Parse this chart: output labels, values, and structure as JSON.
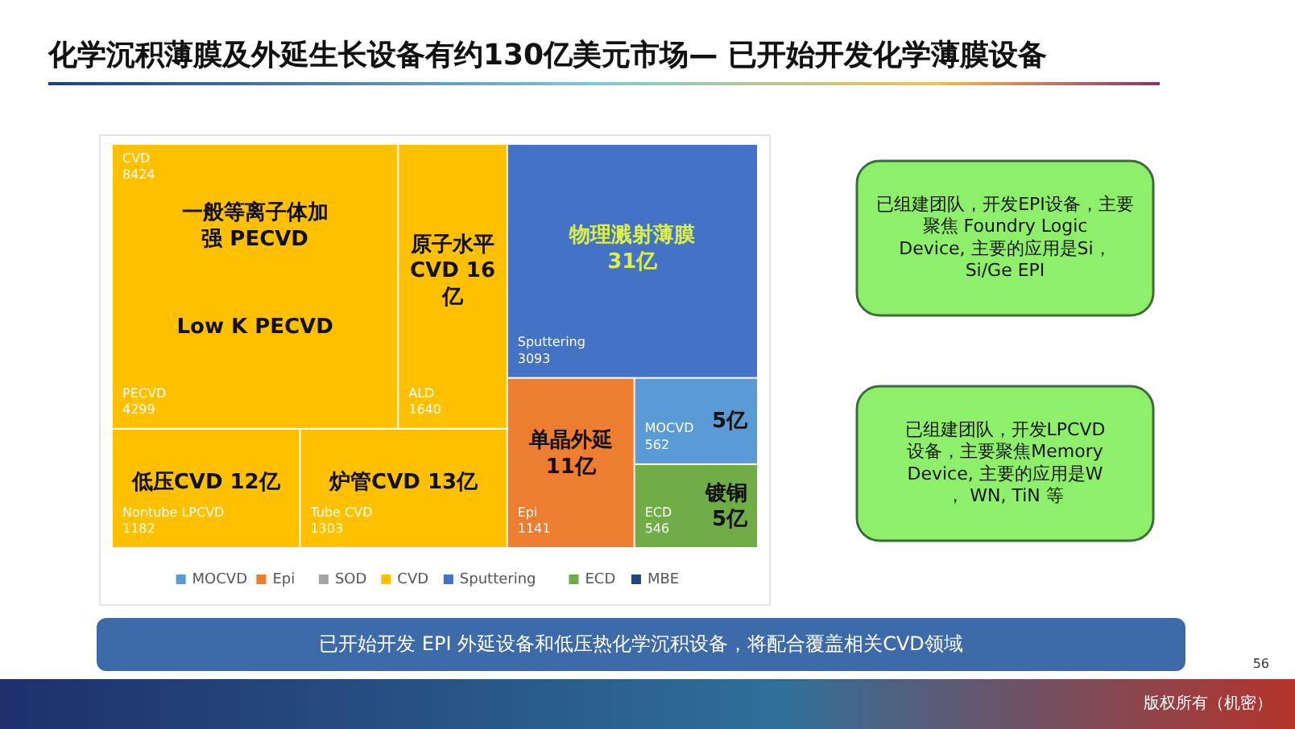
{
  "chart_data": {
    "type": "other",
    "title": "化学沉积薄膜及外延生长设备有约130亿美元市场— 已开始开发化学薄膜设备",
    "categories": [
      "PECVD",
      "ALD",
      "Nontube LPCVD",
      "Tube CVD",
      "Sputtering",
      "Epi",
      "ECD",
      "MOCVD"
    ],
    "series": [
      {
        "name": "MOCVD",
        "color": "#5b9bd5",
        "values": [
          null,
          null,
          null,
          null,
          null,
          null,
          null,
          562
        ]
      },
      {
        "name": "Epi",
        "color": "#ed7d31",
        "values": [
          null,
          null,
          null,
          null,
          null,
          1141,
          null,
          null
        ]
      },
      {
        "name": "SOD",
        "color": "#a5a5a5",
        "values": [
          null,
          null,
          null,
          null,
          null,
          null,
          null,
          null
        ]
      },
      {
        "name": "CVD",
        "color": "#ffc000",
        "values": [
          4299,
          1640,
          1182,
          1303,
          null,
          null,
          null,
          null
        ]
      },
      {
        "name": "Sputtering",
        "color": "#4472c4",
        "values": [
          null,
          null,
          null,
          null,
          3093,
          null,
          null,
          null
        ]
      },
      {
        "name": "ECD",
        "color": "#70ad47",
        "values": [
          null,
          null,
          null,
          null,
          null,
          null,
          546,
          null
        ]
      },
      {
        "name": "MBE",
        "color": "#264478",
        "values": [
          null,
          null,
          null,
          null,
          null,
          null,
          null,
          null
        ]
      }
    ],
    "data_labels": true,
    "legend": "bottom",
    "annotations": [
      {
        "text": "一般等离子体加强 PECVD",
        "x": "PECVD"
      },
      {
        "text": "Low K PECVD",
        "x": "PECVD"
      },
      {
        "text": "原子水平CVD 16亿",
        "x": "ALD"
      },
      {
        "text": "低压CVD 12亿",
        "x": "Nontube LPCVD"
      },
      {
        "text": "炉管CVD  13亿",
        "x": "Tube CVD"
      },
      {
        "text": "物理溅射薄膜 31亿",
        "x": "Sputtering"
      },
      {
        "text": "单晶外延 11亿",
        "x": "Epi"
      },
      {
        "text": "镀铜 5亿",
        "x": "ECD"
      },
      {
        "text": "5亿",
        "x": "MOCVD"
      },
      "CVD 8424",
      "已组建团队，开发EPI设备，主要聚焦 Foundry Logic Device, 主要的应用是Si， Si/Ge EPI",
      "已组建团队，开发LPCVD设备，主要聚焦Memory Device, 主要的应用是W， WN, TiN 等",
      "已开始开发 EPI 外延设备和低压热化学沉积设备，将配合覆盖相关CVD领域",
      "版权所有（机密）",
      "56"
    ]
  }
}
